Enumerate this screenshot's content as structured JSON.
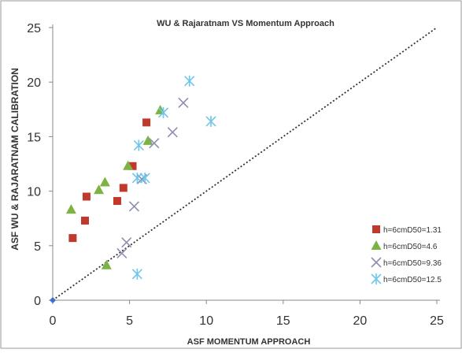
{
  "chart_data": {
    "type": "scatter",
    "title": "WU & Rajaratnam VS Momentum Approach",
    "xlabel": "ASF MOMENTUM APPROACH",
    "ylabel": "ASF  WU & RAJARATNAM  CALIBRATION",
    "xlim": [
      0,
      25
    ],
    "ylim": [
      0,
      25
    ],
    "xticks": [
      "0",
      "5",
      "10",
      "15",
      "20",
      "25"
    ],
    "yticks": [
      "0",
      "5",
      "10",
      "15",
      "20",
      "25"
    ],
    "grid": false,
    "legend_position": "bottom-right",
    "series": [
      {
        "name": "h=6cmD50=1.31",
        "marker": "square",
        "color": "#c0392b",
        "points": [
          [
            1.3,
            5.7
          ],
          [
            2.1,
            7.3
          ],
          [
            2.2,
            9.5
          ],
          [
            4.2,
            9.1
          ],
          [
            4.6,
            10.3
          ],
          [
            5.2,
            12.3
          ],
          [
            6.1,
            16.3
          ]
        ]
      },
      {
        "name": "h=6cmD50=4.6",
        "marker": "triangle",
        "color": "#7cb342",
        "points": [
          [
            1.2,
            8.3
          ],
          [
            3.0,
            10.1
          ],
          [
            3.4,
            10.8
          ],
          [
            3.5,
            3.2
          ],
          [
            4.9,
            12.3
          ],
          [
            6.2,
            14.6
          ],
          [
            7.0,
            17.4
          ]
        ]
      },
      {
        "name": "h=6cmD50=9.36",
        "marker": "x",
        "color": "#8e8eb0",
        "points": [
          [
            4.5,
            4.3
          ],
          [
            4.8,
            5.3
          ],
          [
            5.3,
            8.6
          ],
          [
            5.8,
            11.1
          ],
          [
            6.6,
            14.4
          ],
          [
            7.8,
            15.4
          ],
          [
            8.5,
            18.1
          ]
        ]
      },
      {
        "name": "h=6cmD50=12.5",
        "marker": "star",
        "color": "#6ec6e8",
        "points": [
          [
            5.5,
            2.4
          ],
          [
            5.5,
            11.2
          ],
          [
            5.6,
            14.2
          ],
          [
            6.0,
            11.2
          ],
          [
            7.2,
            17.2
          ],
          [
            8.9,
            20.1
          ],
          [
            10.3,
            16.4
          ]
        ]
      }
    ],
    "reference_line": {
      "from": [
        0,
        0
      ],
      "to": [
        25,
        25
      ],
      "style": "dotted"
    },
    "origin_marker": [
      0,
      0
    ]
  }
}
